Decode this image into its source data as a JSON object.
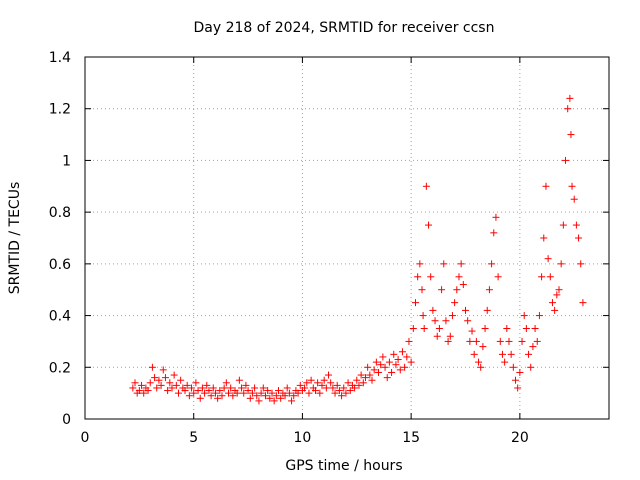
{
  "chart_data": {
    "type": "scatter",
    "title": "Day 218 of 2024, SRMTID for receiver ccsn",
    "xlabel": "GPS time / hours",
    "ylabel": "SRMTID / TECUs",
    "xlim": [
      0,
      24.1
    ],
    "ylim": [
      0,
      1.4
    ],
    "x_ticks": [
      0,
      5,
      10,
      15,
      20
    ],
    "x_tick_labels": [
      "0",
      "5",
      "10",
      "15",
      "20"
    ],
    "y_ticks": [
      0,
      0.2,
      0.4,
      0.6,
      0.8,
      1.0,
      1.2,
      1.4
    ],
    "y_tick_labels": [
      "0",
      "0.2",
      "0.4",
      "0.6",
      "0.8",
      "1",
      "1.2",
      "1.4"
    ],
    "grid": true,
    "marker": "+",
    "marker_color": "#ff0000",
    "series": [
      {
        "name": "SRMTID",
        "x": [
          2.2,
          2.3,
          2.4,
          2.5,
          2.6,
          2.7,
          2.8,
          2.9,
          3.0,
          3.1,
          3.2,
          3.3,
          3.4,
          3.5,
          3.6,
          3.7,
          3.8,
          3.9,
          4.0,
          4.1,
          4.2,
          4.3,
          4.4,
          4.5,
          4.6,
          4.7,
          4.8,
          4.9,
          5.0,
          5.1,
          5.2,
          5.3,
          5.4,
          5.5,
          5.6,
          5.7,
          5.8,
          5.9,
          6.0,
          6.1,
          6.2,
          6.3,
          6.4,
          6.5,
          6.6,
          6.7,
          6.8,
          6.9,
          7.0,
          7.1,
          7.2,
          7.3,
          7.4,
          7.5,
          7.6,
          7.7,
          7.8,
          7.9,
          8.0,
          8.1,
          8.2,
          8.3,
          8.4,
          8.5,
          8.6,
          8.7,
          8.8,
          8.9,
          9.0,
          9.1,
          9.2,
          9.3,
          9.4,
          9.5,
          9.6,
          9.7,
          9.8,
          9.9,
          10.0,
          10.1,
          10.2,
          10.3,
          10.4,
          10.5,
          10.6,
          10.7,
          10.8,
          10.9,
          11.0,
          11.1,
          11.2,
          11.3,
          11.4,
          11.5,
          11.6,
          11.7,
          11.8,
          11.9,
          12.0,
          12.1,
          12.2,
          12.3,
          12.4,
          12.5,
          12.6,
          12.7,
          12.8,
          12.9,
          13.0,
          13.1,
          13.2,
          13.3,
          13.4,
          13.5,
          13.6,
          13.7,
          13.8,
          13.9,
          14.0,
          14.1,
          14.2,
          14.3,
          14.4,
          14.5,
          14.6,
          14.7,
          14.8,
          14.9,
          15.0,
          15.1,
          15.2,
          15.3,
          15.4,
          15.5,
          15.55,
          15.6,
          15.7,
          15.8,
          15.9,
          16.0,
          16.1,
          16.2,
          16.3,
          16.4,
          16.5,
          16.6,
          16.7,
          16.8,
          16.9,
          17.0,
          17.1,
          17.2,
          17.3,
          17.4,
          17.5,
          17.6,
          17.7,
          17.8,
          17.9,
          18.0,
          18.1,
          18.2,
          18.3,
          18.4,
          18.5,
          18.6,
          18.7,
          18.8,
          18.9,
          19.0,
          19.1,
          19.2,
          19.3,
          19.4,
          19.5,
          19.6,
          19.7,
          19.8,
          19.9,
          20.0,
          20.1,
          20.2,
          20.3,
          20.4,
          20.5,
          20.6,
          20.7,
          20.8,
          20.9,
          21.0,
          21.1,
          21.2,
          21.3,
          21.4,
          21.5,
          21.6,
          21.7,
          21.8,
          21.9,
          22.0,
          22.1,
          22.2,
          22.3,
          22.35,
          22.4,
          22.5,
          22.6,
          22.7,
          22.8,
          22.9
        ],
        "y": [
          0.12,
          0.14,
          0.1,
          0.11,
          0.13,
          0.1,
          0.12,
          0.11,
          0.14,
          0.2,
          0.16,
          0.12,
          0.15,
          0.13,
          0.19,
          0.16,
          0.11,
          0.14,
          0.12,
          0.17,
          0.13,
          0.1,
          0.15,
          0.12,
          0.11,
          0.13,
          0.09,
          0.12,
          0.1,
          0.14,
          0.11,
          0.08,
          0.12,
          0.1,
          0.13,
          0.11,
          0.09,
          0.12,
          0.1,
          0.08,
          0.11,
          0.09,
          0.12,
          0.14,
          0.1,
          0.12,
          0.09,
          0.11,
          0.1,
          0.15,
          0.12,
          0.1,
          0.13,
          0.11,
          0.08,
          0.1,
          0.12,
          0.09,
          0.07,
          0.1,
          0.12,
          0.09,
          0.11,
          0.08,
          0.1,
          0.07,
          0.09,
          0.11,
          0.08,
          0.1,
          0.09,
          0.12,
          0.1,
          0.07,
          0.09,
          0.11,
          0.1,
          0.13,
          0.11,
          0.12,
          0.14,
          0.1,
          0.15,
          0.12,
          0.11,
          0.14,
          0.1,
          0.13,
          0.15,
          0.12,
          0.17,
          0.14,
          0.12,
          0.1,
          0.13,
          0.11,
          0.09,
          0.12,
          0.1,
          0.14,
          0.11,
          0.13,
          0.12,
          0.15,
          0.13,
          0.17,
          0.14,
          0.16,
          0.2,
          0.17,
          0.15,
          0.19,
          0.22,
          0.18,
          0.21,
          0.24,
          0.2,
          0.16,
          0.22,
          0.18,
          0.25,
          0.21,
          0.23,
          0.19,
          0.26,
          0.2,
          0.24,
          0.3,
          0.22,
          0.35,
          0.45,
          0.55,
          0.6,
          0.5,
          0.4,
          0.35,
          0.9,
          0.75,
          0.55,
          0.42,
          0.38,
          0.32,
          0.35,
          0.5,
          0.6,
          0.38,
          0.3,
          0.32,
          0.4,
          0.45,
          0.5,
          0.55,
          0.6,
          0.52,
          0.42,
          0.38,
          0.3,
          0.34,
          0.25,
          0.3,
          0.22,
          0.2,
          0.28,
          0.35,
          0.42,
          0.5,
          0.6,
          0.72,
          0.78,
          0.55,
          0.3,
          0.25,
          0.22,
          0.35,
          0.3,
          0.25,
          0.2,
          0.15,
          0.12,
          0.18,
          0.3,
          0.4,
          0.35,
          0.25,
          0.2,
          0.28,
          0.35,
          0.3,
          0.4,
          0.55,
          0.7,
          0.9,
          0.62,
          0.55,
          0.45,
          0.42,
          0.48,
          0.5,
          0.6,
          0.75,
          1.0,
          1.2,
          1.24,
          1.1,
          0.9,
          0.85,
          0.75,
          0.7,
          0.6,
          0.45
        ]
      }
    ]
  }
}
